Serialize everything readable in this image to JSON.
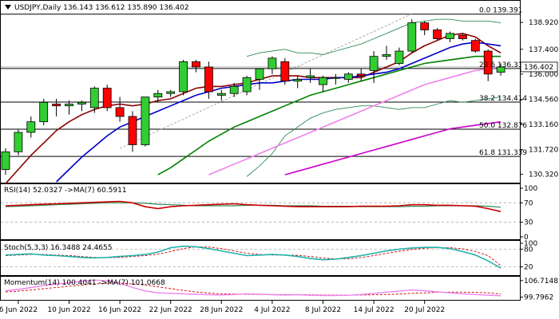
{
  "chart_data": {
    "type": "candlestick",
    "symbol": "USDJPY",
    "timeframe": "Daily",
    "header_ohlc": "136.143 136.612 135.890 136.402",
    "x_tick_labels": [
      "6 Jun 2022",
      "10 Jun 2022",
      "16 Jun 2022",
      "22 Jun 2022",
      "28 Jun 2022",
      "4 Jul 2022",
      "8 Jul 2022",
      "14 Jul 2022",
      "20 Jul 2022"
    ],
    "x_tick_index": [
      1,
      5,
      9,
      13,
      17,
      21,
      25,
      29,
      33
    ],
    "price_axis": {
      "min": 129.9,
      "max": 140.1,
      "ticks": [
        "138.920",
        "137.400",
        "136.000",
        "134.560",
        "133.160",
        "131.720",
        "130.320"
      ]
    },
    "current_price": "136.402",
    "candles": [
      {
        "o": 130.6,
        "h": 131.8,
        "l": 130.3,
        "c": 131.6
      },
      {
        "o": 131.6,
        "h": 132.9,
        "l": 131.4,
        "c": 132.7
      },
      {
        "o": 132.7,
        "h": 133.6,
        "l": 132.4,
        "c": 133.3
      },
      {
        "o": 133.3,
        "h": 134.6,
        "l": 133.1,
        "c": 134.4
      },
      {
        "o": 134.3,
        "h": 134.6,
        "l": 133.6,
        "c": 134.2
      },
      {
        "o": 134.2,
        "h": 134.5,
        "l": 133.7,
        "c": 134.3
      },
      {
        "o": 134.3,
        "h": 134.5,
        "l": 133.9,
        "c": 134.4
      },
      {
        "o": 134.1,
        "h": 135.3,
        "l": 133.8,
        "c": 135.2
      },
      {
        "o": 135.2,
        "h": 135.4,
        "l": 133.9,
        "c": 134.1
      },
      {
        "o": 134.1,
        "h": 134.7,
        "l": 133.3,
        "c": 133.6
      },
      {
        "o": 133.6,
        "h": 133.9,
        "l": 131.6,
        "c": 132.0
      },
      {
        "o": 132.0,
        "h": 134.7,
        "l": 131.9,
        "c": 134.7
      },
      {
        "o": 134.7,
        "h": 135.1,
        "l": 134.4,
        "c": 134.9
      },
      {
        "o": 134.9,
        "h": 135.1,
        "l": 134.7,
        "c": 135.0
      },
      {
        "o": 135.0,
        "h": 136.8,
        "l": 134.8,
        "c": 136.7
      },
      {
        "o": 136.7,
        "h": 136.8,
        "l": 136.1,
        "c": 136.4
      },
      {
        "o": 136.4,
        "h": 136.7,
        "l": 134.6,
        "c": 135.0
      },
      {
        "o": 134.8,
        "h": 135.1,
        "l": 134.5,
        "c": 134.9
      },
      {
        "o": 134.9,
        "h": 135.5,
        "l": 134.7,
        "c": 135.3
      },
      {
        "o": 135.0,
        "h": 135.9,
        "l": 134.8,
        "c": 135.8
      },
      {
        "o": 135.7,
        "h": 136.3,
        "l": 135.1,
        "c": 136.3
      },
      {
        "o": 136.3,
        "h": 137.0,
        "l": 136.0,
        "c": 136.9
      },
      {
        "o": 136.7,
        "h": 136.9,
        "l": 135.4,
        "c": 135.6
      },
      {
        "o": 135.6,
        "h": 135.9,
        "l": 135.2,
        "c": 135.7
      },
      {
        "o": 135.8,
        "h": 136.3,
        "l": 135.5,
        "c": 135.9
      },
      {
        "o": 135.4,
        "h": 135.9,
        "l": 135.0,
        "c": 135.8
      },
      {
        "o": 135.8,
        "h": 136.0,
        "l": 135.4,
        "c": 135.8
      },
      {
        "o": 135.7,
        "h": 136.1,
        "l": 135.5,
        "c": 136.0
      },
      {
        "o": 136.0,
        "h": 136.3,
        "l": 135.6,
        "c": 135.9
      },
      {
        "o": 136.2,
        "h": 137.3,
        "l": 135.5,
        "c": 137.0
      },
      {
        "o": 137.0,
        "h": 137.6,
        "l": 136.8,
        "c": 137.1
      },
      {
        "o": 136.6,
        "h": 137.5,
        "l": 136.5,
        "c": 137.3
      },
      {
        "o": 137.3,
        "h": 139.1,
        "l": 137.2,
        "c": 138.9
      },
      {
        "o": 138.9,
        "h": 139.0,
        "l": 138.2,
        "c": 138.5
      },
      {
        "o": 138.5,
        "h": 138.6,
        "l": 137.9,
        "c": 138.0
      },
      {
        "o": 138.0,
        "h": 138.4,
        "l": 137.8,
        "c": 138.3
      },
      {
        "o": 138.2,
        "h": 138.3,
        "l": 137.9,
        "c": 138.0
      },
      {
        "o": 137.9,
        "h": 138.0,
        "l": 137.2,
        "c": 137.3
      },
      {
        "o": 137.3,
        "h": 137.4,
        "l": 135.6,
        "c": 136.0
      },
      {
        "o": 136.1,
        "h": 136.6,
        "l": 135.9,
        "c": 136.4
      }
    ],
    "moving_averages": [
      {
        "color": "#8b0000",
        "values": [
          129.8,
          130.6,
          131.4,
          132.1,
          132.8,
          133.3,
          133.7,
          134.0,
          134.2,
          134.3,
          134.2,
          134.3,
          134.5,
          134.6,
          134.9,
          135.2,
          135.3,
          135.3,
          135.4,
          135.5,
          135.7,
          135.9,
          135.9,
          135.9,
          135.8,
          135.8,
          135.8,
          135.8,
          135.8,
          136.1,
          136.4,
          136.7,
          137.2,
          137.6,
          137.9,
          138.2,
          138.3,
          138.1,
          137.6,
          137.2
        ]
      },
      {
        "color": "#0000cc",
        "values": [
          null,
          null,
          null,
          null,
          129.9,
          130.6,
          131.3,
          131.9,
          132.5,
          133.0,
          133.3,
          133.6,
          133.9,
          134.2,
          134.5,
          134.8,
          135.0,
          135.2,
          135.3,
          135.4,
          135.5,
          135.5,
          135.6,
          135.7,
          135.7,
          135.7,
          135.8,
          135.8,
          135.9,
          136.0,
          136.1,
          136.3,
          136.6,
          136.9,
          137.2,
          137.5,
          137.7,
          137.8,
          137.7,
          137.6
        ]
      },
      {
        "color": "#008000",
        "values": [
          null,
          null,
          null,
          null,
          null,
          null,
          null,
          null,
          null,
          null,
          null,
          null,
          130.3,
          130.7,
          131.2,
          131.7,
          132.2,
          132.6,
          133.0,
          133.3,
          133.6,
          133.9,
          134.2,
          134.5,
          134.8,
          135.0,
          135.2,
          135.4,
          135.6,
          135.8,
          136.0,
          136.2,
          136.4,
          136.6,
          136.7,
          136.8,
          136.9,
          137.0,
          137.0,
          137.0
        ]
      },
      {
        "color": "#ee82ee",
        "values": [
          null,
          null,
          null,
          null,
          null,
          null,
          null,
          null,
          null,
          null,
          null,
          null,
          null,
          null,
          null,
          null,
          130.3,
          130.6,
          130.9,
          131.2,
          131.5,
          131.8,
          132.1,
          132.4,
          132.7,
          133.0,
          133.3,
          133.6,
          133.9,
          134.2,
          134.5,
          134.8,
          135.1,
          135.4,
          135.6,
          135.8,
          136.0,
          136.2,
          136.3,
          136.4
        ]
      },
      {
        "color": "#cc00cc",
        "values": [
          null,
          null,
          null,
          null,
          null,
          null,
          null,
          null,
          null,
          null,
          null,
          null,
          null,
          null,
          null,
          null,
          null,
          null,
          null,
          null,
          null,
          null,
          130.3,
          130.5,
          130.7,
          130.9,
          131.1,
          131.3,
          131.5,
          131.7,
          131.9,
          132.1,
          132.3,
          132.5,
          132.7,
          132.9,
          133.0,
          133.1,
          133.2,
          133.3
        ]
      }
    ],
    "bollinger": {
      "color": "#2e8b57",
      "upper": [
        null,
        null,
        null,
        null,
        null,
        null,
        null,
        null,
        null,
        null,
        null,
        null,
        null,
        null,
        null,
        null,
        null,
        null,
        null,
        137.0,
        137.2,
        137.3,
        137.4,
        137.2,
        137.2,
        137.1,
        137.3,
        137.5,
        137.7,
        138.0,
        138.3,
        138.6,
        138.9,
        139.0,
        139.1,
        139.1,
        139.0,
        139.0,
        139.0,
        138.9
      ],
      "lower": [
        null,
        null,
        null,
        null,
        null,
        null,
        null,
        null,
        null,
        null,
        null,
        null,
        null,
        null,
        null,
        null,
        null,
        null,
        null,
        130.2,
        130.8,
        131.5,
        132.5,
        133.0,
        133.5,
        133.8,
        134.0,
        134.1,
        134.2,
        134.2,
        134.1,
        134.0,
        134.1,
        134.1,
        134.3,
        134.5,
        134.4,
        134.5,
        134.6,
        134.7
      ]
    },
    "fibonacci": [
      {
        "label": "0.0 139.391",
        "value": 139.391
      },
      {
        "label": "23.6 136.316",
        "value": 136.316
      },
      {
        "label": "38.2 134.414",
        "value": 134.414
      },
      {
        "label": "50.0 132.876",
        "value": 132.876
      },
      {
        "label": "61.8 131.339",
        "value": 131.339
      }
    ],
    "trendline": {
      "color": "#999999",
      "from": {
        "i": 9,
        "v": 131.8
      },
      "to": {
        "i": 32,
        "v": 139.4
      }
    },
    "rsi": {
      "label": "RSI(14) 52.0327  ->MA(7) 60.5911",
      "axis": {
        "min": 0,
        "max": 100,
        "ticks": [
          "100",
          "70",
          "30",
          "0"
        ]
      },
      "levels": [
        70,
        30
      ],
      "rsi": [
        64,
        65,
        66,
        67,
        68,
        69,
        70,
        71,
        72,
        73,
        70,
        62,
        58,
        62,
        64,
        65,
        66,
        67,
        68,
        66,
        65,
        64,
        63,
        62,
        62,
        62,
        62,
        62,
        63,
        63,
        63,
        64,
        66,
        66,
        65,
        65,
        64,
        63,
        58,
        52
      ],
      "ma": [
        62,
        63,
        64,
        65,
        66,
        67,
        68,
        69,
        70,
        70,
        70,
        69,
        67,
        66,
        65,
        64,
        64,
        64,
        64,
        65,
        65,
        65,
        64,
        64,
        64,
        63,
        63,
        63,
        62,
        62,
        62,
        62,
        63,
        63,
        64,
        64,
        64,
        64,
        63,
        61
      ]
    },
    "stoch": {
      "label": "Stoch(5,3,3) 16.3488 24.4655",
      "axis": {
        "min": 0,
        "max": 100,
        "ticks": [
          "100",
          "80",
          "20"
        ]
      },
      "levels": [
        80,
        20
      ],
      "k": [
        60,
        62,
        64,
        60,
        58,
        55,
        52,
        50,
        52,
        55,
        58,
        62,
        70,
        85,
        90,
        88,
        82,
        74,
        66,
        58,
        60,
        62,
        60,
        55,
        48,
        44,
        46,
        52,
        58,
        66,
        74,
        80,
        84,
        86,
        86,
        82,
        72,
        60,
        40,
        16
      ],
      "d": [
        58,
        60,
        62,
        62,
        60,
        58,
        55,
        52,
        51,
        52,
        55,
        58,
        63,
        72,
        82,
        88,
        87,
        82,
        74,
        66,
        62,
        60,
        60,
        59,
        55,
        50,
        47,
        47,
        52,
        58,
        66,
        73,
        79,
        83,
        85,
        85,
        81,
        72,
        58,
        24
      ]
    },
    "momentum": {
      "label": "Momentum(14) 100.4041  ->MA(7) 101.0668",
      "axis": {
        "ticks": [
          "106.7148",
          "99.7962"
        ]
      },
      "min": 99.0,
      "max": 107.3,
      "mom": [
        102.5,
        103.0,
        103.8,
        104.6,
        105.2,
        105.8,
        106.4,
        106.9,
        106.6,
        105.6,
        103.8,
        102.4,
        101.6,
        101.4,
        101.2,
        101.0,
        100.8,
        100.7,
        100.9,
        101.2,
        101.0,
        100.8,
        100.7,
        100.8,
        100.6,
        100.5,
        100.5,
        100.6,
        100.9,
        101.4,
        101.9,
        102.3,
        102.8,
        102.5,
        102.0,
        101.6,
        101.2,
        100.9,
        100.6,
        100.4
      ],
      "ma": [
        102.0,
        102.3,
        102.8,
        103.3,
        103.8,
        104.3,
        104.8,
        105.3,
        105.6,
        105.6,
        105.3,
        104.8,
        104.1,
        103.3,
        102.6,
        102.0,
        101.5,
        101.2,
        101.1,
        101.0,
        100.9,
        100.9,
        100.9,
        100.9,
        100.8,
        100.7,
        100.7,
        100.7,
        100.7,
        100.8,
        100.9,
        101.1,
        101.4,
        101.6,
        101.8,
        101.9,
        101.9,
        101.8,
        101.6,
        101.1
      ]
    }
  }
}
